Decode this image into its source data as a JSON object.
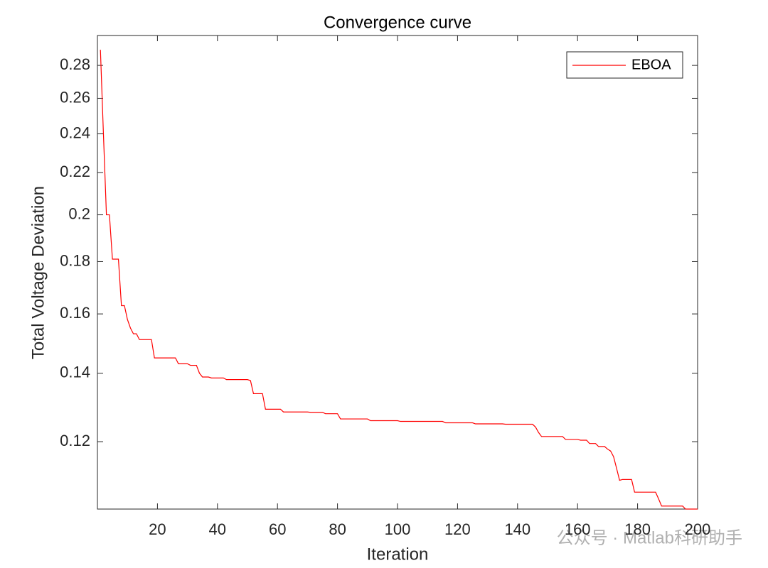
{
  "chart_data": {
    "type": "line",
    "title": "Convergence curve",
    "xlabel": "Iteration",
    "ylabel": "Total Voltage Deviation",
    "watermark": "公众号 · Matlab科研助手",
    "log_y": true,
    "legend": "top-right",
    "xlim": [
      0,
      200
    ],
    "ylim": [
      0.1031,
      0.2995
    ],
    "xticks": [
      20,
      40,
      60,
      80,
      100,
      120,
      140,
      160,
      180,
      200
    ],
    "yticks": [
      0.12,
      0.14,
      0.16,
      0.18,
      0.2,
      0.22,
      0.24,
      0.26,
      0.28
    ],
    "x": [
      1,
      2,
      3,
      4,
      5,
      6,
      7,
      8,
      9,
      10,
      11,
      12,
      13,
      14,
      15,
      16,
      17,
      18,
      19,
      20,
      21,
      22,
      23,
      24,
      25,
      26,
      27,
      28,
      29,
      30,
      31,
      32,
      33,
      34,
      35,
      36,
      37,
      38,
      39,
      40,
      41,
      42,
      43,
      44,
      45,
      46,
      47,
      48,
      49,
      50,
      51,
      52,
      53,
      54,
      55,
      56,
      57,
      58,
      59,
      60,
      61,
      62,
      63,
      64,
      65,
      66,
      67,
      68,
      69,
      70,
      71,
      72,
      73,
      74,
      75,
      76,
      77,
      78,
      79,
      80,
      81,
      82,
      83,
      84,
      85,
      86,
      87,
      88,
      89,
      90,
      91,
      92,
      93,
      94,
      95,
      96,
      97,
      98,
      99,
      100,
      101,
      102,
      103,
      104,
      105,
      106,
      107,
      108,
      109,
      110,
      111,
      112,
      113,
      114,
      115,
      116,
      117,
      118,
      119,
      120,
      121,
      122,
      123,
      124,
      125,
      126,
      127,
      128,
      129,
      130,
      131,
      132,
      133,
      134,
      135,
      136,
      137,
      138,
      139,
      140,
      141,
      142,
      143,
      144,
      145,
      146,
      147,
      148,
      149,
      150,
      151,
      152,
      153,
      154,
      155,
      156,
      157,
      158,
      159,
      160,
      161,
      162,
      163,
      164,
      165,
      166,
      167,
      168,
      169,
      170,
      171,
      172,
      173,
      174,
      175,
      176,
      177,
      178,
      179,
      180,
      181,
      182,
      183,
      184,
      185,
      186,
      187,
      188,
      189,
      190,
      191,
      192,
      193,
      194,
      195,
      196,
      197,
      198,
      199,
      200
    ],
    "series": [
      {
        "name": "EBOA",
        "color": "#ff0000",
        "values": [
          0.29,
          0.24,
          0.2,
          0.2,
          0.181,
          0.181,
          0.181,
          0.163,
          0.163,
          0.158,
          0.155,
          0.153,
          0.153,
          0.151,
          0.151,
          0.151,
          0.151,
          0.151,
          0.1449,
          0.1449,
          0.1449,
          0.1449,
          0.1449,
          0.1449,
          0.1449,
          0.1449,
          0.143,
          0.143,
          0.143,
          0.143,
          0.1425,
          0.1425,
          0.1425,
          0.14,
          0.1388,
          0.1388,
          0.1388,
          0.1385,
          0.1385,
          0.1385,
          0.1385,
          0.1385,
          0.138,
          0.138,
          0.138,
          0.138,
          0.138,
          0.138,
          0.138,
          0.138,
          0.1377,
          0.1337,
          0.1337,
          0.1337,
          0.1337,
          0.1291,
          0.1291,
          0.1291,
          0.1291,
          0.1291,
          0.1291,
          0.1283,
          0.1283,
          0.1283,
          0.1283,
          0.1283,
          0.1283,
          0.1283,
          0.1283,
          0.1283,
          0.1282,
          0.1282,
          0.1282,
          0.1282,
          0.1282,
          0.1278,
          0.1278,
          0.1278,
          0.1278,
          0.1278,
          0.1263,
          0.1263,
          0.1263,
          0.1263,
          0.1263,
          0.1263,
          0.1263,
          0.1263,
          0.1263,
          0.1263,
          0.1258,
          0.1258,
          0.1258,
          0.1258,
          0.1258,
          0.1258,
          0.1258,
          0.1258,
          0.1258,
          0.1258,
          0.1256,
          0.1256,
          0.1256,
          0.1256,
          0.1256,
          0.1256,
          0.1256,
          0.1256,
          0.1256,
          0.1256,
          0.1256,
          0.1256,
          0.1256,
          0.1256,
          0.1256,
          0.1252,
          0.1252,
          0.1252,
          0.1252,
          0.1252,
          0.1252,
          0.1252,
          0.1252,
          0.1252,
          0.1252,
          0.1249,
          0.1249,
          0.1249,
          0.1249,
          0.1249,
          0.1249,
          0.1249,
          0.1249,
          0.1249,
          0.1249,
          0.1248,
          0.1248,
          0.1248,
          0.1248,
          0.1248,
          0.1248,
          0.1248,
          0.1248,
          0.1248,
          0.1248,
          0.124,
          0.1225,
          0.1214,
          0.1214,
          0.1214,
          0.1214,
          0.1214,
          0.1214,
          0.1214,
          0.1214,
          0.1206,
          0.1206,
          0.1206,
          0.1206,
          0.1206,
          0.1204,
          0.1204,
          0.1204,
          0.1195,
          0.1195,
          0.1195,
          0.1187,
          0.1187,
          0.1187,
          0.118,
          0.1175,
          0.116,
          0.113,
          0.11,
          0.1102,
          0.1102,
          0.1102,
          0.1102,
          0.1071,
          0.1071,
          0.1071,
          0.1071,
          0.1071,
          0.1071,
          0.1071,
          0.1071,
          0.1055,
          0.1038,
          0.1038,
          0.1038,
          0.1038,
          0.1038,
          0.1038,
          0.1038,
          0.1038,
          0.1031,
          0.1031,
          0.1031,
          0.1031,
          0.1031
        ]
      }
    ]
  }
}
